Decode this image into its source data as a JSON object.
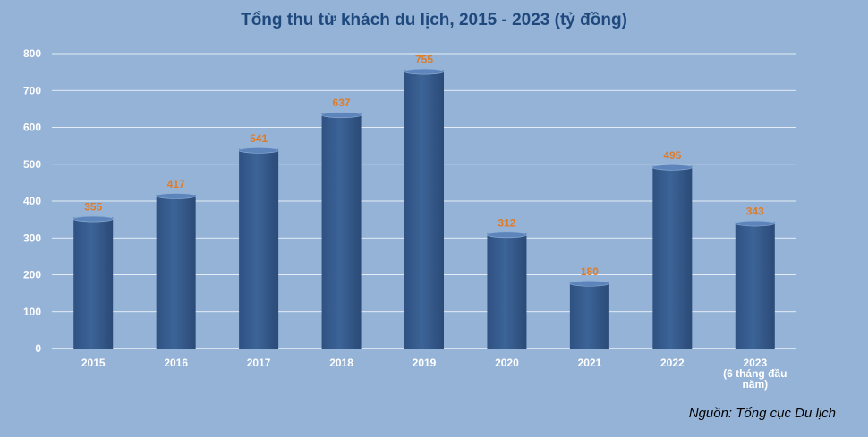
{
  "chart_data": {
    "type": "bar",
    "title": "Tổng thu từ khách du lịch, 2015 - 2023 (tỷ đồng)",
    "source": "Nguồn: Tổng cục Du lịch",
    "categories": [
      [
        "2015"
      ],
      [
        "2016"
      ],
      [
        "2017"
      ],
      [
        "2018"
      ],
      [
        "2019"
      ],
      [
        "2020"
      ],
      [
        "2021"
      ],
      [
        "2022"
      ],
      [
        "2023",
        "(6 tháng đầu",
        "năm)"
      ]
    ],
    "values": [
      355,
      417,
      541,
      637,
      755,
      312,
      180,
      495,
      343
    ],
    "ylim": [
      0,
      800
    ],
    "yticks": [
      0,
      100,
      200,
      300,
      400,
      500,
      600,
      700,
      800
    ],
    "grid": true,
    "colors": {
      "background": "#95b3d7",
      "bar": "#3c6497",
      "bar_top": "#5d85bb",
      "data_label": "#e07b26",
      "gridline": "#ffffff",
      "axis_text": "#ffffff",
      "title": "#1f497d"
    }
  }
}
